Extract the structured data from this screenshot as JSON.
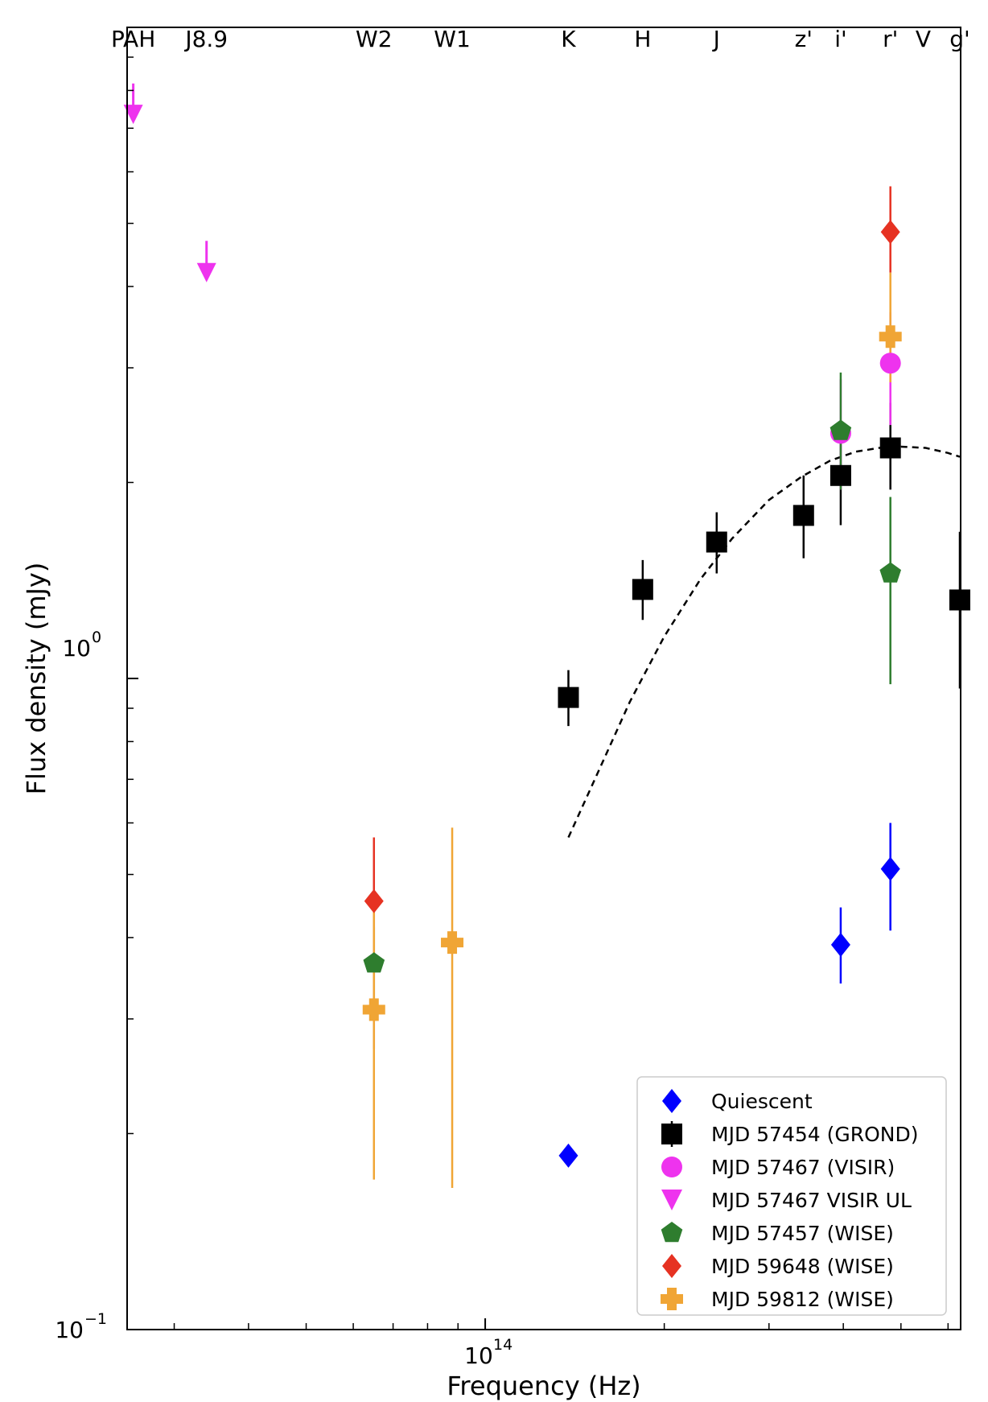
{
  "chart_data": {
    "type": "scatter",
    "title": "",
    "xlabel": "Frequency (Hz)",
    "ylabel": "Flux density (mJy)",
    "xscale": "log",
    "yscale": "log",
    "xlim": [
      25000000000000.0,
      630000000000000.0
    ],
    "ylim": [
      0.1,
      10
    ],
    "y_ticks": [
      {
        "value": 1.0,
        "base": "10",
        "exp": "0"
      },
      {
        "value": 0.1,
        "base": "10",
        "exp": "−1"
      }
    ],
    "x_ticks": [
      {
        "value": 100000000000000.0,
        "base": "10",
        "exp": "14"
      }
    ],
    "bands": [
      {
        "label": "PAH",
        "nu": 25600000000000.0
      },
      {
        "label": "J8.9",
        "nu": 34000000000000.0
      },
      {
        "label": "W2",
        "nu": 65000000000000.0
      },
      {
        "label": "W1",
        "nu": 88000000000000.0
      },
      {
        "label": "K",
        "nu": 138000000000000.0
      },
      {
        "label": "H",
        "nu": 184000000000000.0
      },
      {
        "label": "J",
        "nu": 245000000000000.0
      },
      {
        "label": "z'",
        "nu": 343000000000000.0
      },
      {
        "label": "i'",
        "nu": 396000000000000.0
      },
      {
        "label": "r'",
        "nu": 480000000000000.0
      },
      {
        "label": "V",
        "nu": 545000000000000.0
      },
      {
        "label": "g'",
        "nu": 628000000000000.0
      }
    ],
    "series": [
      {
        "name": "Quiescent",
        "marker": "diamond",
        "color": "#0000ff",
        "points": [
          {
            "x": 138000000000000.0,
            "y": 0.185,
            "lo": 0.181,
            "hi": 0.189
          },
          {
            "x": 396000000000000.0,
            "y": 0.39,
            "lo": 0.34,
            "hi": 0.445
          },
          {
            "x": 480000000000000.0,
            "y": 0.51,
            "lo": 0.41,
            "hi": 0.6
          }
        ]
      },
      {
        "name": "MJD 57454 (GROND)",
        "marker": "square",
        "color": "#000000",
        "points": [
          {
            "x": 138000000000000.0,
            "y": 0.935,
            "lo": 0.845,
            "hi": 1.03
          },
          {
            "x": 184000000000000.0,
            "y": 1.37,
            "lo": 1.23,
            "hi": 1.52
          },
          {
            "x": 245000000000000.0,
            "y": 1.62,
            "lo": 1.45,
            "hi": 1.8
          },
          {
            "x": 343000000000000.0,
            "y": 1.78,
            "lo": 1.53,
            "hi": 2.05
          },
          {
            "x": 396000000000000.0,
            "y": 2.05,
            "lo": 1.72,
            "hi": 2.45
          },
          {
            "x": 480000000000000.0,
            "y": 2.26,
            "lo": 1.95,
            "hi": 2.65
          },
          {
            "x": 628000000000000.0,
            "y": 1.32,
            "lo": 0.965,
            "hi": 1.68
          }
        ]
      },
      {
        "name": "MJD 57467 (VISIR)",
        "marker": "circle",
        "color": "#ee33ee",
        "points": [
          {
            "x": 396000000000000.0,
            "y": 2.38,
            "lo": 1.95,
            "hi": 2.88
          },
          {
            "x": 480000000000000.0,
            "y": 3.05,
            "lo": 2.45,
            "hi": 3.65
          }
        ]
      },
      {
        "name": "MJD 57467 VISIR UL",
        "marker": "arrow-down",
        "color": "#ee33ee",
        "points": [
          {
            "x": 25600000000000.0,
            "y": 7.35,
            "hi": 8.2
          },
          {
            "x": 34000000000000.0,
            "y": 4.2,
            "hi": 4.7
          }
        ]
      },
      {
        "name": "MJD 57457 (WISE)",
        "marker": "pentagon",
        "color": "#2e7d2e",
        "points": [
          {
            "x": 65000000000000.0,
            "y": 0.365,
            "lo": 0.32,
            "hi": 0.415
          },
          {
            "x": 396000000000000.0,
            "y": 2.4,
            "lo": 1.95,
            "hi": 2.95
          },
          {
            "x": 480000000000000.0,
            "y": 1.45,
            "lo": 0.98,
            "hi": 1.9
          }
        ]
      },
      {
        "name": "MJD 59648 (WISE)",
        "marker": "diamond",
        "color": "#e63222",
        "points": [
          {
            "x": 65000000000000.0,
            "y": 0.455,
            "lo": 0.27,
            "hi": 0.57
          },
          {
            "x": 480000000000000.0,
            "y": 4.85,
            "lo": 4.2,
            "hi": 5.7
          }
        ]
      },
      {
        "name": "MJD 59812 (WISE)",
        "marker": "plus",
        "color": "#f0a535",
        "points": [
          {
            "x": 65000000000000.0,
            "y": 0.31,
            "lo": 0.17,
            "hi": 0.455
          },
          {
            "x": 88000000000000.0,
            "y": 0.393,
            "lo": 0.165,
            "hi": 0.59
          },
          {
            "x": 480000000000000.0,
            "y": 3.35,
            "lo": 2.85,
            "hi": 4.2
          }
        ]
      }
    ],
    "model_curve": {
      "style": "dashed",
      "color": "#000000",
      "points": [
        [
          138000000000000.0,
          0.57
        ],
        [
          155000000000000.0,
          0.72
        ],
        [
          175000000000000.0,
          0.92
        ],
        [
          200000000000000.0,
          1.16
        ],
        [
          230000000000000.0,
          1.42
        ],
        [
          260000000000000.0,
          1.64
        ],
        [
          300000000000000.0,
          1.88
        ],
        [
          340000000000000.0,
          2.04
        ],
        [
          380000000000000.0,
          2.16
        ],
        [
          420000000000000.0,
          2.23
        ],
        [
          460000000000000.0,
          2.26
        ],
        [
          500000000000000.0,
          2.27
        ],
        [
          550000000000000.0,
          2.26
        ],
        [
          600000000000000.0,
          2.22
        ],
        [
          628000000000000.0,
          2.19
        ]
      ]
    },
    "legend": {
      "position": "lower right"
    }
  }
}
